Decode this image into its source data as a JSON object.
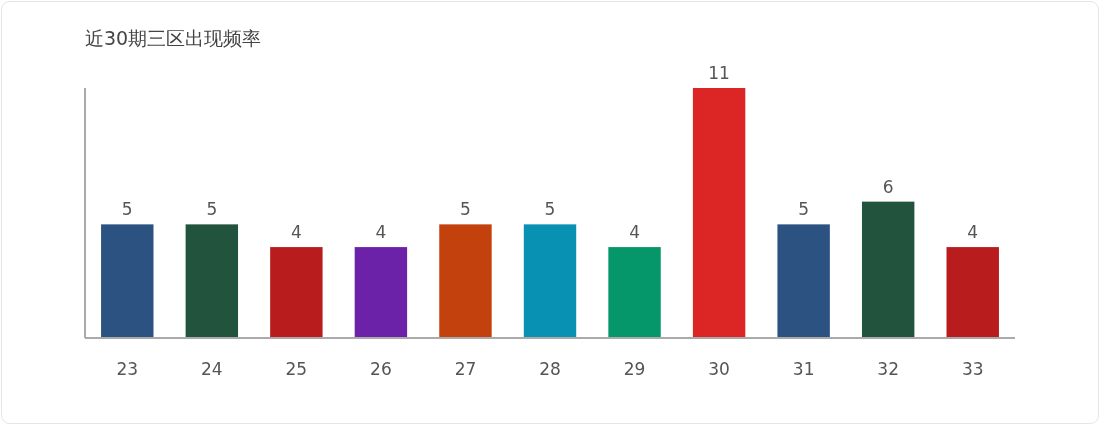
{
  "chart_data": {
    "type": "bar",
    "title": "近30期三区出现频率",
    "categories": [
      "23",
      "24",
      "25",
      "26",
      "27",
      "28",
      "29",
      "30",
      "31",
      "32",
      "33"
    ],
    "values": [
      5,
      5,
      4,
      4,
      5,
      5,
      4,
      11,
      5,
      6,
      4
    ],
    "colors": [
      "#2c5282",
      "#22543d",
      "#b91c1c",
      "#6b21a8",
      "#c2410c",
      "#0891b2",
      "#059669",
      "#dc2626",
      "#2c5282",
      "#22543d",
      "#b91c1c"
    ],
    "ylim": [
      0,
      11
    ],
    "data_labels": true,
    "tick_labels": "x"
  }
}
